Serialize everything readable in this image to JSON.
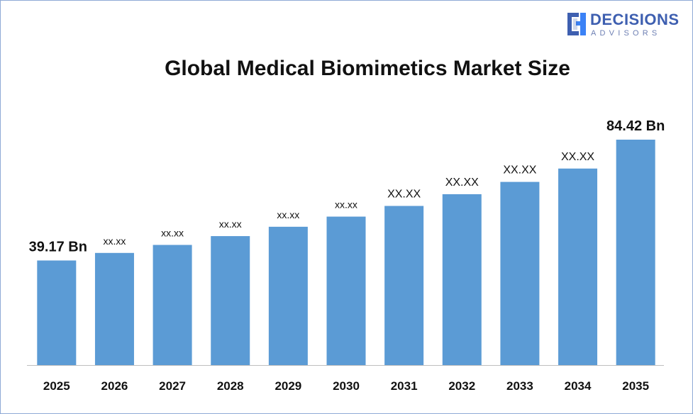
{
  "brand": {
    "name": "DECISIONS",
    "sub": "ADVISORS",
    "primary_color": "#3e5fb0",
    "accent_color": "#3b82f6"
  },
  "chart_data": {
    "type": "bar",
    "title": "Global Medical Biomimetics Market Size",
    "categories": [
      "2025",
      "2026",
      "2027",
      "2028",
      "2029",
      "2030",
      "2031",
      "2032",
      "2033",
      "2034",
      "2035"
    ],
    "values": [
      39.17,
      42.0,
      45.0,
      48.3,
      51.8,
      55.6,
      59.6,
      64.0,
      68.6,
      73.6,
      84.42
    ],
    "data_labels": [
      "39.17 Bn",
      "xx.xx",
      "xx.xx",
      "xx.xx",
      "xx.xx",
      "xx.xx",
      "XX.XX",
      "XX.XX",
      "XX.XX",
      "XX.XX",
      "84.42 Bn"
    ],
    "xlabel": "",
    "ylabel": "",
    "ylim": [
      0,
      100
    ],
    "grid": false,
    "legend": "none",
    "bar_color": "#5b9bd5"
  }
}
